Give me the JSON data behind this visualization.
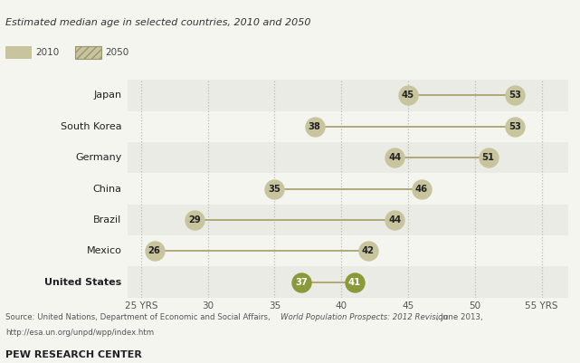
{
  "title": "Estimated median age in selected countries, 2010 and 2050",
  "countries": [
    "Japan",
    "South Korea",
    "Germany",
    "China",
    "Brazil",
    "Mexico",
    "United States"
  ],
  "bold_countries": [
    "United States"
  ],
  "values_2010": [
    45,
    38,
    44,
    35,
    29,
    26,
    37
  ],
  "values_2050": [
    53,
    53,
    51,
    46,
    44,
    42,
    41
  ],
  "xlim": [
    24,
    57
  ],
  "xticks": [
    25,
    30,
    35,
    40,
    45,
    50,
    55
  ],
  "xticklabels": [
    "25 YRS",
    "30",
    "35",
    "40",
    "45",
    "50",
    "55 YRS"
  ],
  "dot_color_light": "#c8c49e",
  "dot_color_bold": "#8a9a3a",
  "line_color": "#b0a878",
  "row_bg_alt": "#ebebe5",
  "row_bg_white": "#f5f5f0",
  "grid_color": "#bbbbbb",
  "footer_text": "PEW RESEARCH CENTER",
  "legend_2010": "2010",
  "legend_2050": "2050",
  "figsize": [
    6.41,
    4.01
  ],
  "dpi": 100
}
